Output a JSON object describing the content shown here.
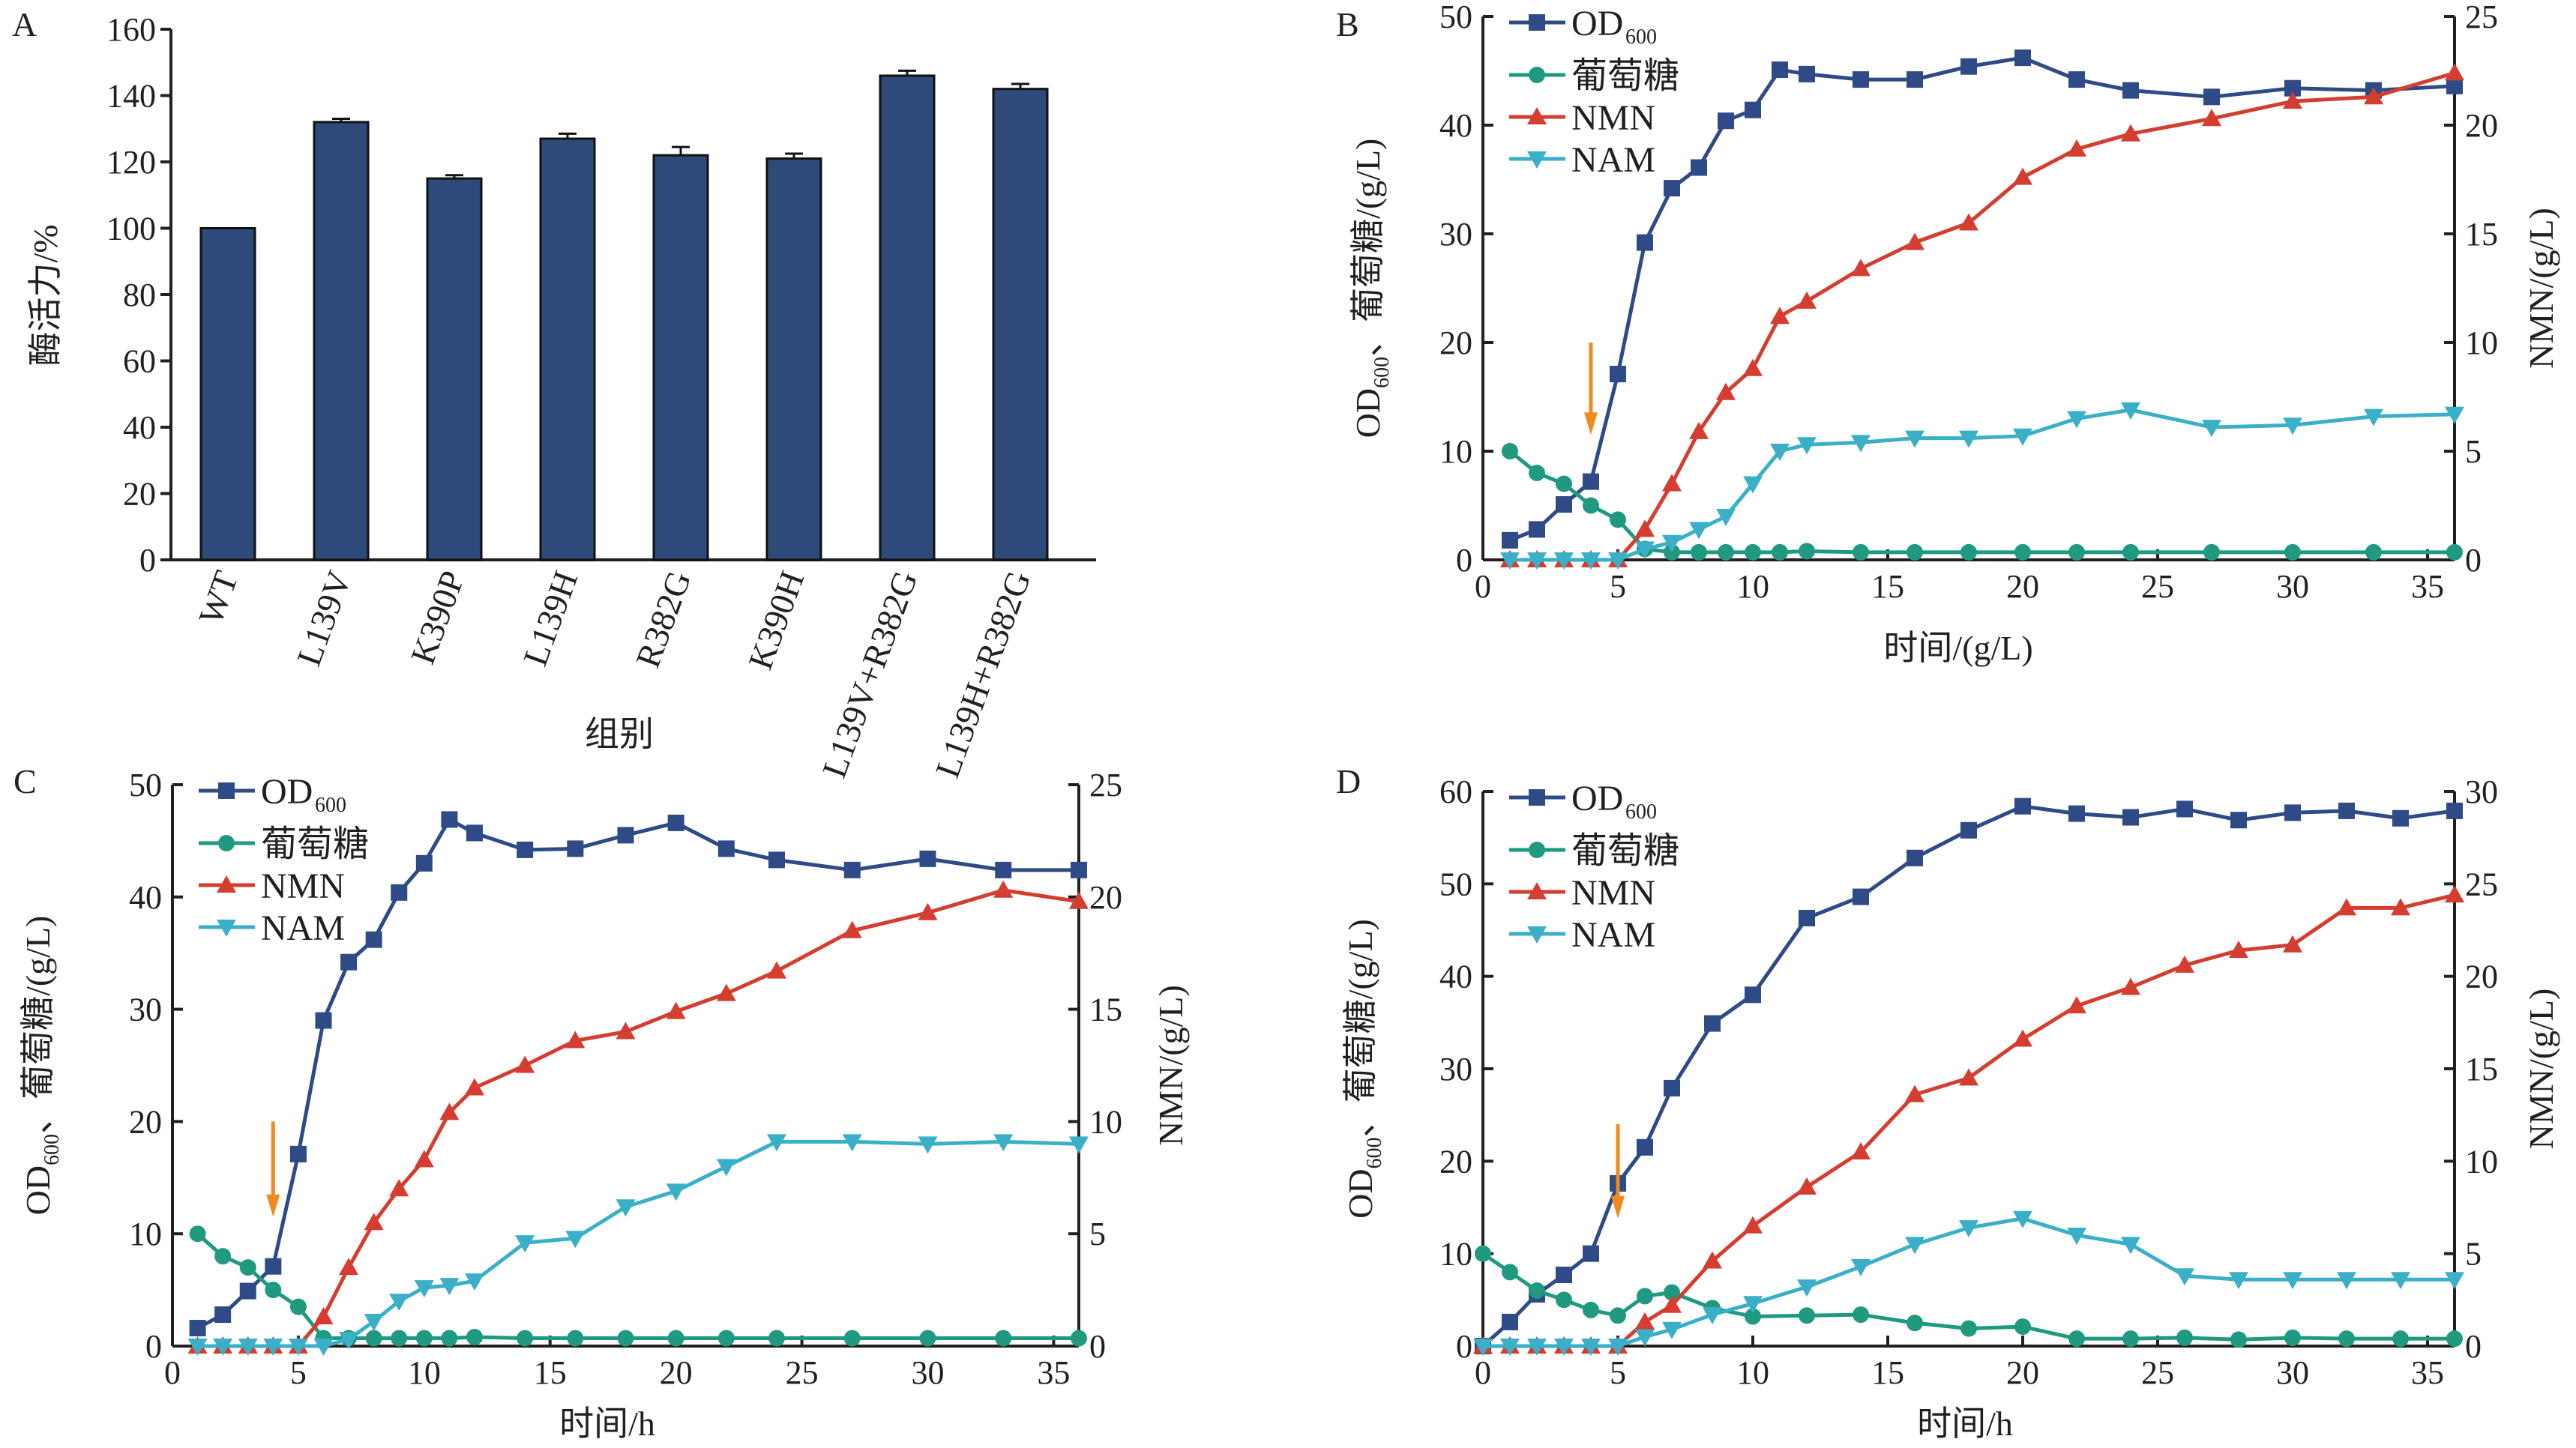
{
  "colors": {
    "OD600": "#2e4a87",
    "glucose": "#1f9a80",
    "NMN": "#d43d2f",
    "NAM": "#3ab0c8",
    "arrow": "#f08a1e",
    "bar": "#2e4a7a",
    "axis": "#231f20"
  },
  "chart_data": [
    {
      "panel": "A",
      "type": "bar",
      "categories": [
        "WT",
        "L139V",
        "K390P",
        "L139H",
        "R382G",
        "K390H",
        "L139V+R382G",
        "L139H+R382G"
      ],
      "values": [
        100,
        132,
        115,
        127,
        122,
        121,
        146,
        142
      ],
      "errors": [
        0,
        1,
        1,
        1.5,
        2.5,
        1.5,
        1.5,
        1.5
      ],
      "xlabel": "组别",
      "ylabel": "酶活力/%",
      "ylim": [
        0,
        160
      ],
      "yticks": [
        0,
        20,
        40,
        60,
        80,
        100,
        120,
        140,
        160
      ],
      "grid": false
    },
    {
      "panel": "B",
      "type": "line",
      "xlabel": "时间/(g/L)",
      "ylabel_left": {
        "main": "OD",
        "sub": "600",
        "rest": "、葡萄糖/(g/L)"
      },
      "ylabel_right": "NMN/(g/L)",
      "xlim": [
        0,
        36
      ],
      "xticks": [
        0,
        5,
        10,
        15,
        20,
        25,
        30,
        35
      ],
      "ylim_left": [
        0,
        50
      ],
      "yticks_left": [
        0,
        10,
        20,
        30,
        40,
        50
      ],
      "ylim_right": [
        0,
        25
      ],
      "yticks_right": [
        0,
        5,
        10,
        15,
        20,
        25
      ],
      "legend": "top-left",
      "arrow_at_x": 4,
      "series": [
        {
          "name": "OD",
          "sub": "600",
          "key": "OD600",
          "axis": "left",
          "marker": "square",
          "x": [
            1,
            2,
            3,
            4,
            5,
            6,
            7,
            8,
            9,
            10,
            11,
            12,
            14,
            16,
            18,
            20,
            22,
            24,
            27,
            30,
            33,
            36
          ],
          "y": [
            1.8,
            2.8,
            5.1,
            7.2,
            17.1,
            29.2,
            34.2,
            36.1,
            40.4,
            41.4,
            45.1,
            44.7,
            44.2,
            44.2,
            45.4,
            46.2,
            44.2,
            43.2,
            42.6,
            43.4,
            43.2,
            43.6
          ]
        },
        {
          "name": "葡萄糖",
          "key": "glucose",
          "axis": "left",
          "marker": "circle",
          "x": [
            1,
            2,
            3,
            4,
            5,
            6,
            7,
            8,
            9,
            10,
            11,
            12,
            14,
            16,
            18,
            20,
            22,
            24,
            27,
            30,
            33,
            36
          ],
          "y": [
            10,
            8,
            7,
            5,
            3.7,
            1.0,
            0.7,
            0.7,
            0.7,
            0.7,
            0.7,
            0.8,
            0.7,
            0.7,
            0.7,
            0.7,
            0.7,
            0.7,
            0.7,
            0.7,
            0.7,
            0.7
          ]
        },
        {
          "name": "NMN",
          "key": "NMN",
          "axis": "right",
          "marker": "triangle-up",
          "x": [
            1,
            2,
            3,
            4,
            5,
            6,
            7,
            8,
            9,
            10,
            11,
            12,
            14,
            16,
            18,
            20,
            22,
            24,
            27,
            30,
            33,
            36
          ],
          "y": [
            0,
            0,
            0,
            0,
            0,
            1.4,
            3.5,
            5.9,
            7.7,
            8.8,
            11.2,
            11.9,
            13.4,
            14.6,
            15.5,
            17.6,
            18.9,
            19.6,
            20.3,
            21.1,
            21.3,
            22.4
          ]
        },
        {
          "name": "NAM",
          "key": "NAM",
          "axis": "right",
          "marker": "triangle-down",
          "x": [
            1,
            2,
            3,
            4,
            5,
            6,
            7,
            8,
            9,
            10,
            11,
            12,
            14,
            16,
            18,
            20,
            22,
            24,
            27,
            30,
            33,
            36
          ],
          "y": [
            0,
            0,
            0,
            0,
            0,
            0.5,
            0.8,
            1.4,
            2.0,
            3.5,
            5.0,
            5.3,
            5.4,
            5.6,
            5.6,
            5.7,
            6.5,
            6.9,
            6.1,
            6.2,
            6.6,
            6.7
          ]
        }
      ]
    },
    {
      "panel": "C",
      "type": "line",
      "xlabel": "时间/h",
      "ylabel_left": {
        "main": "OD",
        "sub": "600",
        "rest": "、葡萄糖/(g/L)"
      },
      "ylabel_right": "NMN/(g/L)",
      "xlim": [
        0,
        36
      ],
      "xticks": [
        0,
        5,
        10,
        15,
        20,
        25,
        30,
        35
      ],
      "ylim_left": [
        0,
        50
      ],
      "yticks_left": [
        0,
        10,
        20,
        30,
        40,
        50
      ],
      "ylim_right": [
        0,
        25
      ],
      "yticks_right": [
        0,
        5,
        10,
        15,
        20,
        25
      ],
      "legend": "top-left",
      "arrow_at_x": 4,
      "series": [
        {
          "name": "OD",
          "sub": "600",
          "key": "OD600",
          "axis": "left",
          "marker": "square",
          "x": [
            1,
            2,
            3,
            4,
            5,
            6,
            7,
            8,
            9,
            10,
            11,
            12,
            14,
            16,
            18,
            20,
            22,
            24,
            27,
            30,
            33,
            36
          ],
          "y": [
            1.6,
            2.8,
            4.9,
            7.1,
            17.1,
            29.0,
            34.2,
            36.2,
            40.4,
            43.0,
            46.9,
            45.7,
            44.2,
            44.3,
            45.5,
            46.6,
            44.3,
            43.3,
            42.4,
            43.4,
            42.4,
            42.4
          ]
        },
        {
          "name": "葡萄糖",
          "key": "glucose",
          "axis": "left",
          "marker": "circle",
          "x": [
            1,
            2,
            3,
            4,
            5,
            6,
            7,
            8,
            9,
            10,
            11,
            12,
            14,
            16,
            18,
            20,
            22,
            24,
            27,
            30,
            33,
            36
          ],
          "y": [
            10,
            8,
            7,
            5,
            3.5,
            0.7,
            0.7,
            0.7,
            0.7,
            0.7,
            0.7,
            0.8,
            0.7,
            0.7,
            0.7,
            0.7,
            0.7,
            0.7,
            0.7,
            0.7,
            0.7,
            0.7
          ]
        },
        {
          "name": "NMN",
          "key": "NMN",
          "axis": "right",
          "marker": "triangle-up",
          "x": [
            1,
            2,
            3,
            4,
            5,
            6,
            7,
            8,
            9,
            10,
            11,
            12,
            14,
            16,
            18,
            20,
            22,
            24,
            27,
            30,
            33,
            36
          ],
          "y": [
            0,
            0,
            0,
            0,
            0,
            1.3,
            3.5,
            5.5,
            7.0,
            8.3,
            10.4,
            11.5,
            12.5,
            13.6,
            14.0,
            14.9,
            15.7,
            16.7,
            18.5,
            19.3,
            20.3,
            19.8
          ]
        },
        {
          "name": "NAM",
          "key": "NAM",
          "axis": "right",
          "marker": "triangle-down",
          "x": [
            1,
            2,
            3,
            4,
            5,
            6,
            7,
            8,
            9,
            10,
            11,
            12,
            14,
            16,
            18,
            20,
            22,
            24,
            27,
            30,
            33,
            36
          ],
          "y": [
            0,
            0,
            0,
            0,
            0,
            0,
            0.3,
            1.1,
            2.0,
            2.6,
            2.7,
            2.9,
            4.6,
            4.8,
            6.2,
            6.9,
            8.0,
            9.1,
            9.1,
            9.0,
            9.1,
            9.0
          ]
        }
      ]
    },
    {
      "panel": "D",
      "type": "line",
      "xlabel": "时间/h",
      "ylabel_left": {
        "main": "OD",
        "sub": "600",
        "rest": "、葡萄糖/(g/L)"
      },
      "ylabel_right": "NMN/(g/L)",
      "xlim": [
        0,
        36
      ],
      "xticks": [
        0,
        5,
        10,
        15,
        20,
        25,
        30,
        35
      ],
      "ylim_left": [
        0,
        60
      ],
      "yticks_left": [
        0,
        10,
        20,
        30,
        40,
        50,
        60
      ],
      "ylim_right": [
        0,
        30
      ],
      "yticks_right": [
        0,
        5,
        10,
        15,
        20,
        25,
        30
      ],
      "legend": "top-left",
      "arrow_at_x": 5,
      "series": [
        {
          "name": "OD",
          "sub": "600",
          "key": "OD600",
          "axis": "left",
          "marker": "square",
          "x": [
            0,
            1,
            2,
            3,
            4,
            5,
            6,
            7,
            8.5,
            10,
            12,
            14,
            16,
            18,
            20,
            22,
            24,
            26,
            28,
            30,
            32,
            34,
            36
          ],
          "y": [
            0,
            2.6,
            5.6,
            7.7,
            10,
            17.6,
            21.5,
            27.9,
            34.9,
            38,
            46.3,
            48.6,
            52.8,
            55.8,
            58.4,
            57.6,
            57.2,
            58.1,
            56.9,
            57.7,
            57.9,
            57.1,
            57.9
          ]
        },
        {
          "name": "葡萄糖",
          "key": "glucose",
          "axis": "left",
          "marker": "circle",
          "x": [
            0,
            1,
            2,
            3,
            4,
            5,
            6,
            7,
            8.5,
            10,
            12,
            14,
            16,
            18,
            20,
            22,
            24,
            26,
            28,
            30,
            32,
            34,
            36
          ],
          "y": [
            10,
            8,
            6,
            5,
            3.9,
            3.3,
            5.4,
            5.8,
            4.1,
            3.2,
            3.3,
            3.4,
            2.5,
            1.9,
            2.1,
            0.8,
            0.8,
            0.9,
            0.7,
            0.9,
            0.8,
            0.8,
            0.8
          ]
        },
        {
          "name": "NMN",
          "key": "NMN",
          "axis": "right",
          "marker": "triangle-up",
          "x": [
            0,
            1,
            2,
            3,
            4,
            5,
            6,
            7,
            8.5,
            10,
            12,
            14,
            16,
            18,
            20,
            22,
            24,
            26,
            28,
            30,
            32,
            34,
            36
          ],
          "y": [
            0,
            0,
            0,
            0,
            0,
            0,
            1.3,
            2.2,
            4.6,
            6.5,
            8.6,
            10.5,
            13.6,
            14.5,
            16.6,
            18.4,
            19.4,
            20.6,
            21.4,
            21.7,
            23.7,
            23.7,
            24.4
          ]
        },
        {
          "name": "NAM",
          "key": "NAM",
          "axis": "right",
          "marker": "triangle-down",
          "x": [
            0,
            1,
            2,
            3,
            4,
            5,
            6,
            7,
            8.5,
            10,
            12,
            14,
            16,
            18,
            20,
            22,
            24,
            26,
            28,
            30,
            32,
            34,
            36
          ],
          "y": [
            0,
            0,
            0,
            0,
            0,
            0,
            0.5,
            0.9,
            1.7,
            2.3,
            3.2,
            4.3,
            5.5,
            6.4,
            6.9,
            6.0,
            5.5,
            3.8,
            3.6,
            3.6,
            3.6,
            3.6,
            3.6
          ]
        }
      ]
    }
  ]
}
